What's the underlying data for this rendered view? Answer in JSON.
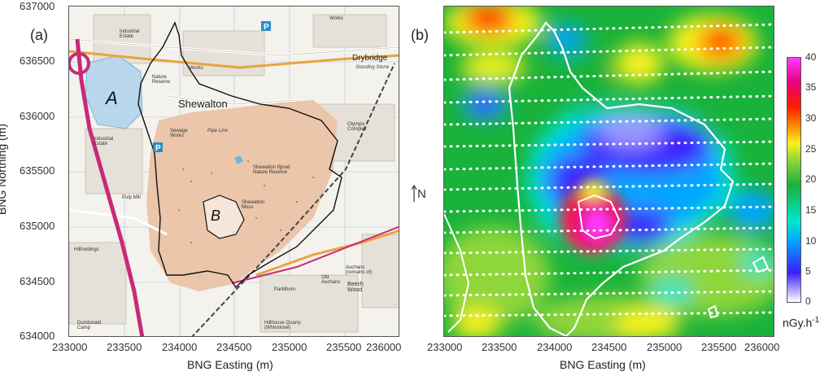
{
  "panel_a": {
    "letter": "(a)",
    "y_ticks": [
      "637000",
      "636500",
      "636000",
      "635500",
      "635000",
      "634500",
      "634000"
    ],
    "x_ticks": [
      "233000",
      "233500",
      "234000",
      "234500",
      "235000",
      "235500",
      "236000"
    ],
    "x_title": "BNG Easting (m)",
    "y_title": "BNG Northing (m)",
    "area_labels": [
      "A",
      "B"
    ],
    "place_labels": {
      "shewalton": "Shewalton",
      "drybridge": "Drybridge",
      "standing_stone": "Standing Stone",
      "nature_reserve": "Shewalton Wood Nature Reserve",
      "moss": "Shewalton Moss",
      "olympic": "Olympic Complex",
      "industrial_n": "Industrial Estate",
      "industrial_w": "Industrial Estate",
      "sewage": "Sewage Works",
      "pulp_mill": "Pulp Mill",
      "works": "Works",
      "works2": "Works",
      "parkthorn": "Parkthorn",
      "old_auchans": "Old Auchans",
      "beech_wood": "Beech Wood",
      "auchans": "Auchans (remains of)",
      "quarry": "Hillhouse Quarry (Whinstone)",
      "dundonald": "Dundonald Camp",
      "hillholdings": "Hillholdings",
      "pipe_line": "Pipe Line",
      "gatehead_nr": "Nature Reserve"
    },
    "colors": {
      "background": "#f4f2ec",
      "woodland": "#e9c9b0",
      "motorway": "#c82a78",
      "a_road": "#e8a33e",
      "water": "#a9cfe8",
      "boundary": "#111111"
    }
  },
  "panel_b": {
    "letter": "(b)",
    "x_ticks": [
      "233000",
      "233500",
      "234000",
      "234500",
      "235000",
      "235500",
      "236000"
    ],
    "x_title": "BNG Easting (m)",
    "north_label": "N",
    "colorbar": {
      "ticks": [
        "40",
        "35",
        "30",
        "25",
        "20",
        "15",
        "10",
        "5",
        "0"
      ],
      "unit": "nGy.h",
      "unit_sup": "-1",
      "min": 0,
      "max": 40,
      "stops": [
        "#ffffff",
        "#3c1dff",
        "#00a6ff",
        "#00e6d0",
        "#19b23a",
        "#8fd63a",
        "#f7f21a",
        "#ff8a00",
        "#ff1a00",
        "#e6007e",
        "#ff3cff"
      ]
    }
  }
}
